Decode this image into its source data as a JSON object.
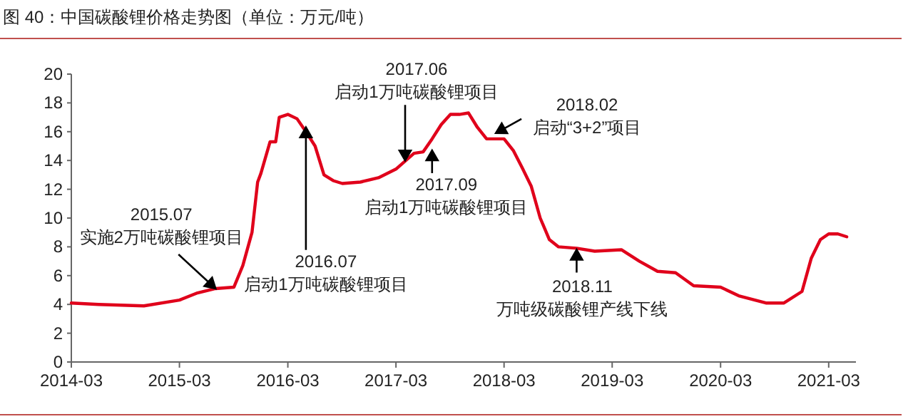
{
  "chart_data": {
    "type": "line",
    "title": "图 40：中国碳酸锂价格走势图（单位：万元/吨）",
    "x": [
      "2014-03",
      "2014-06",
      "2014-11",
      "2015-03",
      "2015-05",
      "2015-07",
      "2015-09",
      "2015-10",
      "2015-11",
      "2015-11-20",
      "2015-12",
      "2016-01",
      "2016-01-20",
      "2016-02",
      "2016-03",
      "2016-04",
      "2016-05",
      "2016-06",
      "2016-07",
      "2016-08",
      "2016-09",
      "2016-11",
      "2017-01",
      "2017-03",
      "2017-05",
      "2017-06",
      "2017-07",
      "2017-08",
      "2017-09",
      "2017-10",
      "2017-11",
      "2017-12",
      "2018-01",
      "2018-03",
      "2018-04",
      "2018-05",
      "2018-06",
      "2018-07",
      "2018-08",
      "2018-09",
      "2018-11",
      "2019-01",
      "2019-04",
      "2019-06",
      "2019-08",
      "2019-10",
      "2019-12",
      "2020-03",
      "2020-05",
      "2020-08",
      "2020-10",
      "2020-12",
      "2021-01",
      "2021-02",
      "2021-03",
      "2021-04",
      "2021-05"
    ],
    "series": [
      {
        "color": "#e0001b",
        "values": [
          4.1,
          4.0,
          3.9,
          4.3,
          4.8,
          5.1,
          5.2,
          6.7,
          9.0,
          12.5,
          13.1,
          15.3,
          15.3,
          17.0,
          17.2,
          16.9,
          16.0,
          15.0,
          13.0,
          12.6,
          12.4,
          12.5,
          12.8,
          13.4,
          14.5,
          14.6,
          15.5,
          16.5,
          17.2,
          17.2,
          17.3,
          16.3,
          15.5,
          15.5,
          14.7,
          13.5,
          12.2,
          10.0,
          8.5,
          8.0,
          7.9,
          7.7,
          7.8,
          7.0,
          6.3,
          6.2,
          5.3,
          5.2,
          4.6,
          4.1,
          4.1,
          4.9,
          7.2,
          8.5,
          8.9,
          8.9,
          8.7
        ]
      }
    ],
    "xlim": [
      "2014-03",
      "2021-06"
    ],
    "xticks": [
      {
        "value": "2014-03",
        "label": "2014-03"
      },
      {
        "value": "2015-03",
        "label": "2015-03"
      },
      {
        "value": "2016-03",
        "label": "2016-03"
      },
      {
        "value": "2017-03",
        "label": "2017-03"
      },
      {
        "value": "2018-03",
        "label": "2018-03"
      },
      {
        "value": "2019-03",
        "label": "2019-03"
      },
      {
        "value": "2020-03",
        "label": "2020-03"
      },
      {
        "value": "2021-03",
        "label": "2021-03"
      }
    ],
    "ylim": [
      0,
      20
    ],
    "yticks": [
      0,
      2,
      4,
      6,
      8,
      10,
      12,
      14,
      16,
      18,
      20
    ],
    "annotations": [
      {
        "text": "2015.07\n实施2万吨碳酸锂项目",
        "x": "2015-07",
        "y": 5.1
      },
      {
        "text": "2016.07\n启动1万吨碳酸锂项目",
        "x": "2016-05",
        "y": 16.3
      },
      {
        "text": "2017.06\n启动1万吨碳酸锂项目",
        "x": "2017-04",
        "y": 14.0
      },
      {
        "text": "2017.09\n启动1万吨碳酸锂项目",
        "x": "2017-07",
        "y": 14.7
      },
      {
        "text": "2018.02\n启动“3+2”项目",
        "x": "2018-02",
        "y": 15.9
      },
      {
        "text": "2018.11\n万吨级碳酸锂产线下线",
        "x": "2018-11",
        "y": 7.8
      }
    ]
  }
}
